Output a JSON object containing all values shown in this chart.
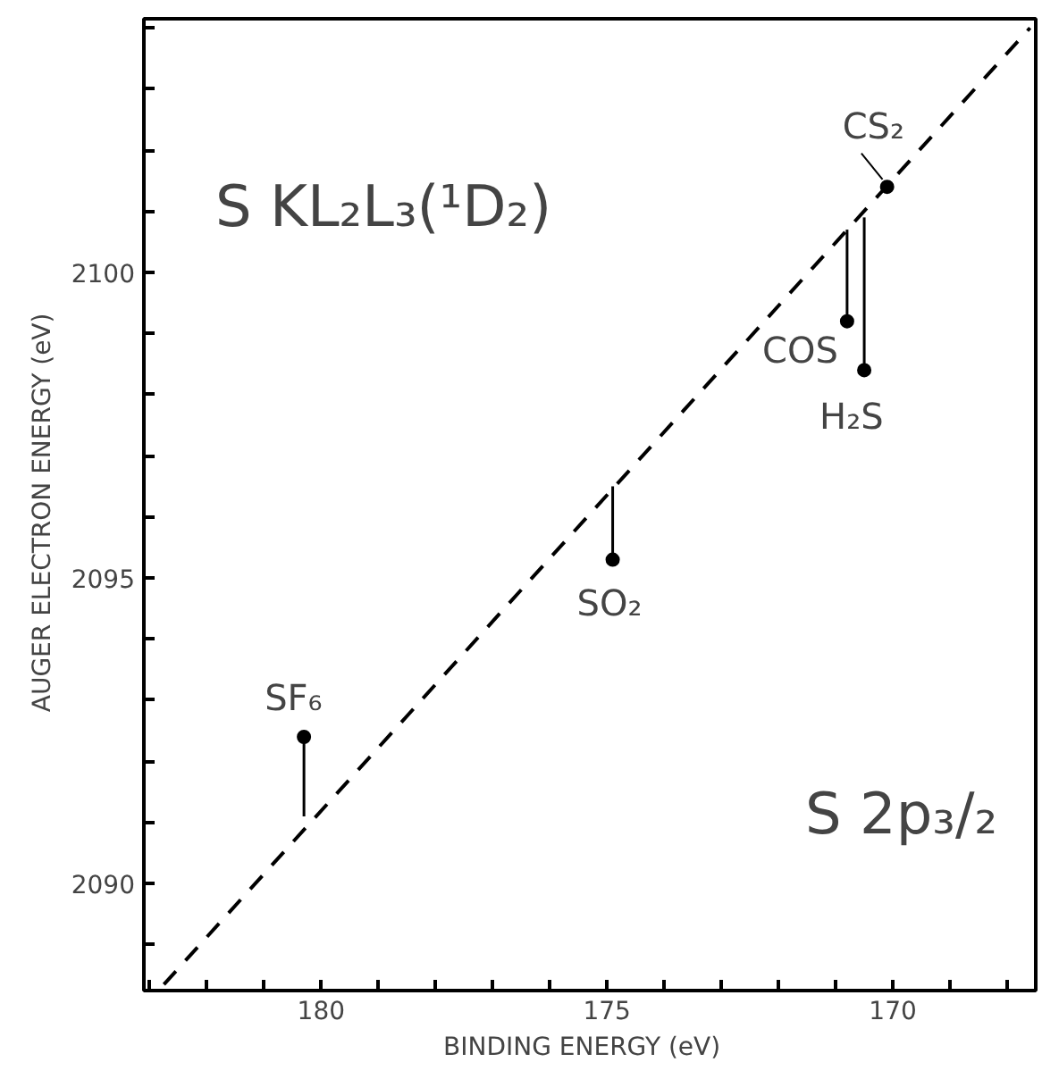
{
  "chart_data": {
    "type": "scatter",
    "xlabel": "BINDING ENERGY   (eV)",
    "ylabel": "AUGER ELECTRON ENERGY   (eV)",
    "xlim": [
      183.1,
      167.5
    ],
    "ylim": [
      2088.25,
      2104.15
    ],
    "xticks": [
      {
        "value": 183,
        "label": null
      },
      {
        "value": 182,
        "label": null
      },
      {
        "value": 181,
        "label": null
      },
      180,
      {
        "value": 179,
        "label": null
      },
      {
        "value": 178,
        "label": null
      },
      {
        "value": 177,
        "label": null
      },
      {
        "value": 176,
        "label": null
      },
      175,
      {
        "value": 174,
        "label": null
      },
      {
        "value": 173,
        "label": null
      },
      {
        "value": 172,
        "label": null
      },
      {
        "value": 171,
        "label": null
      },
      170,
      {
        "value": 169,
        "label": null
      },
      {
        "value": 168,
        "label": null
      }
    ],
    "yticks": [
      {
        "value": 2089,
        "label": null
      },
      2090,
      {
        "value": 2091,
        "label": null
      },
      {
        "value": 2092,
        "label": null
      },
      {
        "value": 2093,
        "label": null
      },
      {
        "value": 2094,
        "label": null
      },
      2095,
      {
        "value": 2096,
        "label": null
      },
      {
        "value": 2097,
        "label": null
      },
      {
        "value": 2098,
        "label": null
      },
      {
        "value": 2099,
        "label": null
      },
      2100,
      {
        "value": 2101,
        "label": null
      },
      {
        "value": 2102,
        "label": null
      },
      {
        "value": 2103,
        "label": null
      },
      {
        "value": 2104,
        "label": null
      }
    ],
    "grid": false,
    "series": [
      {
        "marker": "circle",
        "color": "#000000",
        "x": [
          180.3,
          174.9,
          170.8,
          170.5,
          170.1
        ],
        "values": [
          2092.4,
          2095.3,
          2099.2,
          2098.4,
          2101.4
        ],
        "errors": [
          [
            2091.1,
            2092.4
          ],
          [
            2095.3,
            2096.5
          ],
          [
            2099.2,
            2100.7
          ],
          [
            2098.4,
            2100.9
          ],
          null
        ]
      },
      {
        "type": "line",
        "color": "#000000",
        "line_style": "dashed",
        "x": [
          182.75,
          167.6
        ],
        "values": [
          2088.35,
          2104.0
        ]
      }
    ],
    "annotations": [
      {
        "text": "SF₆",
        "x": 180.3,
        "y": 2092.4
      },
      {
        "text": "SO₂",
        "x": 174.9,
        "y": 2095.3
      },
      {
        "text": "COS",
        "x": 170.8,
        "y": 2099.2
      },
      {
        "text": "H₂S",
        "x": 170.5,
        "y": 2098.4
      },
      {
        "text": "CS₂",
        "x": 170.1,
        "y": 2101.4
      },
      "S KL₂L₃(¹D₂)",
      "S 2p₃/₂"
    ]
  }
}
